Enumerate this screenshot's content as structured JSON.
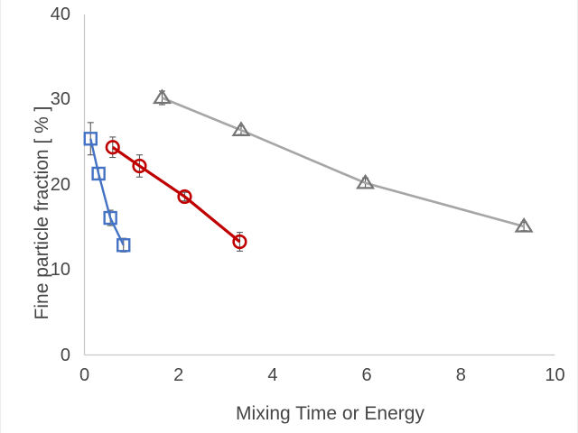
{
  "chart_data": {
    "type": "scatter",
    "title": "",
    "xlabel": "Mixing Time or Energy",
    "ylabel": "Fine particle fraction  [ % ]",
    "xlim": [
      0,
      10
    ],
    "ylim": [
      0,
      40
    ],
    "x_ticks": [
      0,
      2,
      4,
      6,
      8,
      10
    ],
    "y_ticks": [
      0,
      10,
      20,
      30,
      40
    ],
    "grid": false,
    "legend": "none",
    "axis_line_color": "#c6c6c6",
    "tick_text_color": "#454545",
    "error_bar_color": "#595959",
    "series": [
      {
        "name": "gray-triangle-series",
        "marker": "triangle",
        "line_color": "#A6A6A6",
        "marker_color": "#757575",
        "line_width": 2.6,
        "points": [
          {
            "x": 1.65,
            "y": 30.2,
            "yerr": 0.8
          },
          {
            "x": 3.33,
            "y": 26.4,
            "yerr": 0.5
          },
          {
            "x": 5.97,
            "y": 20.2,
            "yerr": 0.6
          },
          {
            "x": 9.34,
            "y": 15.1,
            "yerr": 0.5
          }
        ]
      },
      {
        "name": "blue-square-series",
        "marker": "square",
        "line_color": "#4472C4",
        "marker_color": "#4472C4",
        "line_width": 2.4,
        "points": [
          {
            "x": 0.13,
            "y": 25.4,
            "yerr": 1.9
          },
          {
            "x": 0.3,
            "y": 21.3,
            "yerr": 0.7
          },
          {
            "x": 0.55,
            "y": 16.1,
            "yerr": 0.9
          },
          {
            "x": 0.83,
            "y": 12.9,
            "yerr": 0.8
          }
        ]
      },
      {
        "name": "red-circle-series",
        "marker": "circle",
        "line_color": "#C00000",
        "marker_color": "#C00000",
        "line_width": 3.2,
        "points": [
          {
            "x": 0.6,
            "y": 24.4,
            "yerr": 1.2
          },
          {
            "x": 1.17,
            "y": 22.2,
            "yerr": 1.3
          },
          {
            "x": 2.13,
            "y": 18.6,
            "yerr": 0.5
          },
          {
            "x": 3.3,
            "y": 13.3,
            "yerr": 1.1
          }
        ]
      }
    ]
  }
}
